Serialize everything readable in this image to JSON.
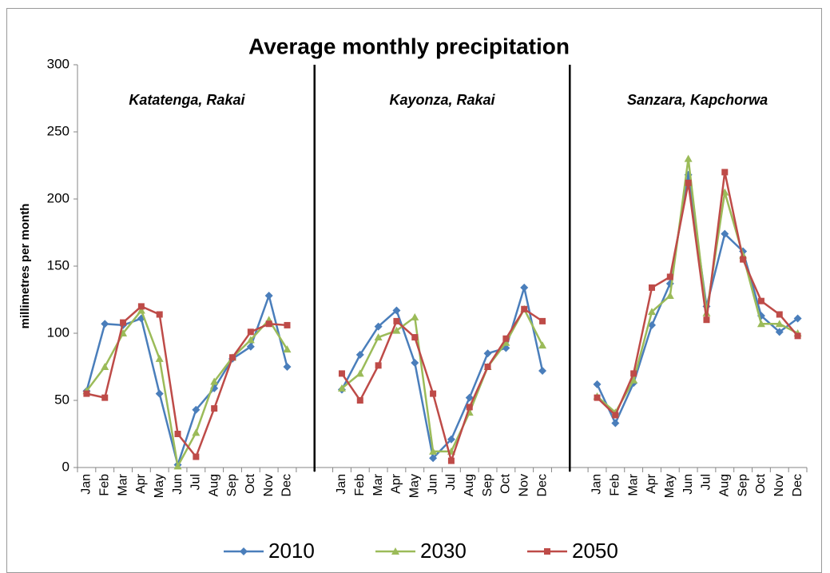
{
  "chart_data": {
    "type": "line",
    "title": "Average monthly precipitation",
    "y_label": "millimetres per month",
    "annotations": [
      "Katatenga, Rakai",
      "Kayonza, Rakai",
      "Sanzara, Kapchorwa"
    ],
    "categories": [
      "Jan",
      "Feb",
      "Mar",
      "Apr",
      "May",
      "Jun",
      "Jul",
      "Aug",
      "Sep",
      "Oct",
      "Nov",
      "Dec",
      null,
      null,
      "Jan",
      "Feb",
      "Mar",
      "Apr",
      "May",
      "Jun",
      "Jul",
      "Aug",
      "Sep",
      "Oct",
      "Nov",
      "Dec",
      null,
      null,
      "Jan",
      "Feb",
      "Mar",
      "Apr",
      "May",
      "Jun",
      "Jul",
      "Aug",
      "Sep",
      "Oct",
      "Nov",
      "Dec"
    ],
    "series": [
      {
        "name": "2010",
        "color": "#4a7ebb",
        "marker": "diamond",
        "values": [
          57,
          107,
          106,
          111,
          55,
          2,
          43,
          59,
          81,
          90,
          128,
          75,
          null,
          null,
          58,
          84,
          105,
          117,
          78,
          7,
          21,
          52,
          85,
          89,
          134,
          72,
          null,
          null,
          62,
          33,
          63,
          106,
          137,
          218,
          120,
          174,
          161,
          113,
          101,
          111
        ]
      },
      {
        "name": "2030",
        "color": "#9bbb59",
        "marker": "triangle",
        "values": [
          57,
          75,
          100,
          117,
          81,
          1,
          26,
          64,
          82,
          95,
          110,
          88,
          null,
          null,
          59,
          70,
          97,
          102,
          112,
          12,
          12,
          41,
          75,
          93,
          118,
          91,
          null,
          null,
          53,
          41,
          65,
          116,
          128,
          230,
          115,
          205,
          158,
          107,
          107,
          100
        ]
      },
      {
        "name": "2050",
        "color": "#be4b48",
        "marker": "square",
        "values": [
          55,
          52,
          108,
          120,
          114,
          25,
          8,
          44,
          82,
          101,
          107,
          106,
          null,
          null,
          70,
          50,
          76,
          109,
          97,
          55,
          5,
          45,
          75,
          96,
          118,
          109,
          null,
          null,
          52,
          39,
          70,
          134,
          142,
          212,
          110,
          220,
          155,
          124,
          114,
          98
        ]
      }
    ],
    "ylim": [
      0,
      300
    ],
    "yticks": [
      0,
      50,
      100,
      150,
      200,
      250,
      300
    ],
    "grid": false,
    "legend": "bottom"
  }
}
